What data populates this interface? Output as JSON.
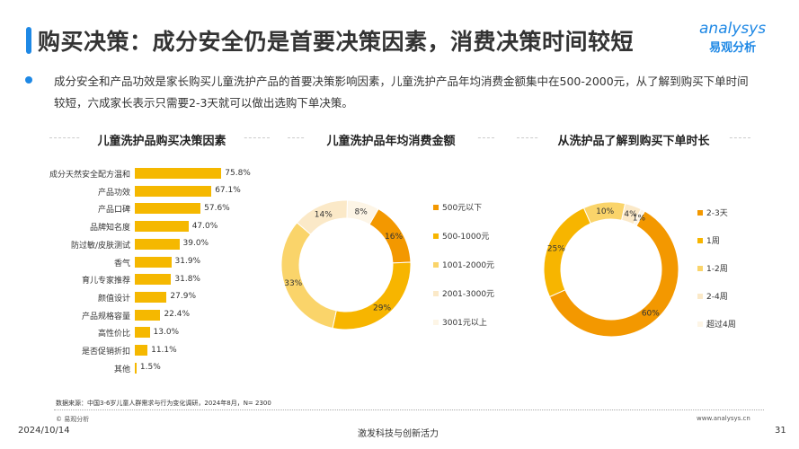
{
  "header": {
    "title": "购买决策：成分安全仍是首要决策因素，消费决策时间较短",
    "logo_en": "analysys",
    "logo_cn": "易观分析"
  },
  "summary": "成分安全和产品功效是家长购买儿童洗护产品的首要决策影响因素，儿童洗护产品年均消费金额集中在500-2000元，从了解到购买下单时间较短，六成家长表示只需要2-3天就可以做出选购下单决策。",
  "chart_data": [
    {
      "type": "bar",
      "orientation": "horizontal",
      "title": "儿童洗护品购买决策因素",
      "color": "#f5b800",
      "categories": [
        "成分天然安全配方温和",
        "产品功效",
        "产品口碑",
        "品牌知名度",
        "防过敏/皮肤测试",
        "香气",
        "育儿专家推荐",
        "颜值设计",
        "产品规格容量",
        "高性价比",
        "是否促销折扣",
        "其他"
      ],
      "values": [
        75.8,
        67.1,
        57.6,
        47.0,
        39.0,
        31.9,
        31.8,
        27.9,
        22.4,
        13.0,
        11.1,
        1.5
      ],
      "labels": [
        "75.8%",
        "67.1%",
        "57.6%",
        "47.0%",
        "39.0%",
        "31.9%",
        "31.8%",
        "27.9%",
        "22.4%",
        "13.0%",
        "11.1%",
        "1.5%"
      ]
    },
    {
      "type": "pie",
      "donut": true,
      "title": "儿童洗护品年均消费金额",
      "categories": [
        "500元以下",
        "500-1000元",
        "1001-2000元",
        "2001-3000元",
        "3001元以上"
      ],
      "values": [
        16,
        29,
        33,
        14,
        8
      ],
      "labels": [
        "16%",
        "29%",
        "33%",
        "14%",
        "8%"
      ],
      "colors": [
        "#f39800",
        "#f7b500",
        "#fad46a",
        "#fbe9c8",
        "#fdf5e6"
      ],
      "legend": "right"
    },
    {
      "type": "pie",
      "donut": true,
      "title": "从洗护品了解到购买下单时长",
      "categories": [
        "2-3天",
        "1周",
        "1-2周",
        "2-4周",
        "超过4周"
      ],
      "values": [
        60,
        25,
        10,
        4,
        1
      ],
      "labels": [
        "60%",
        "25%",
        "10%",
        "4%",
        "1%"
      ],
      "colors": [
        "#f39800",
        "#f7b500",
        "#fad46a",
        "#fbe9c8",
        "#fdf5e6"
      ],
      "legend": "right"
    }
  ],
  "footer": {
    "source": "数据来源：中国3-6岁儿童人群需求与行为变化调研，2024年8月，N= 2300",
    "copyright": "© 易观分析",
    "site": "www.analysys.cn",
    "date": "2024/10/14",
    "slogan": "激发科技与创新活力",
    "page": "31"
  }
}
